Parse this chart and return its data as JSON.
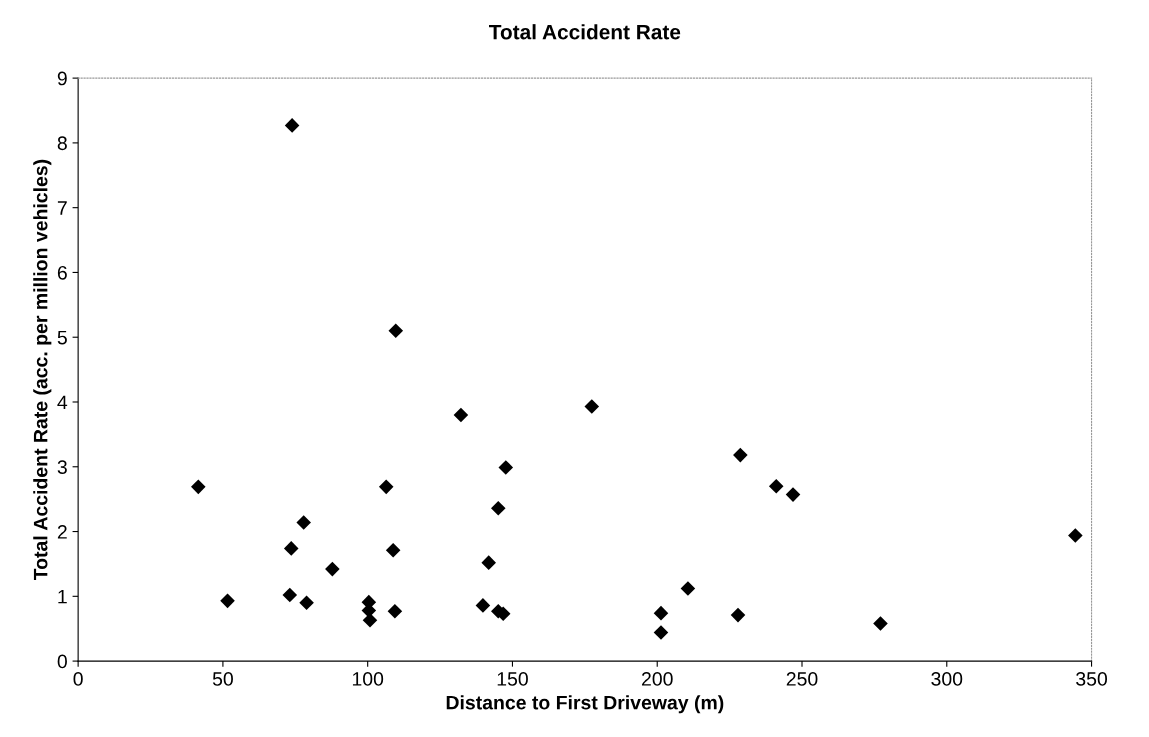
{
  "chart_data": {
    "type": "scatter",
    "title": "Total Accident Rate",
    "xlabel": "Distance to First Driveway (m)",
    "ylabel": "Total Accident Rate (acc. per million vehicles)",
    "x": [
      73.9,
      109.7,
      132.2,
      41.5,
      106.4,
      147.7,
      77.9,
      145.1,
      73.6,
      108.8,
      87.8,
      141.8,
      51.6,
      73.1,
      78.9,
      100.4,
      100.4,
      100.8,
      109.4,
      139.8,
      145.1,
      146.8,
      177.4,
      228.7,
      241.1,
      246.9,
      344.4,
      210.6,
      201.3,
      201.3,
      227.9,
      277.1
    ],
    "values": [
      8.27,
      5.1,
      3.8,
      2.69,
      2.69,
      2.99,
      2.14,
      2.36,
      1.74,
      1.71,
      1.42,
      1.52,
      0.93,
      1.02,
      0.9,
      0.91,
      0.78,
      0.63,
      0.77,
      0.86,
      0.77,
      0.73,
      3.93,
      3.18,
      2.7,
      2.57,
      1.94,
      1.12,
      0.74,
      0.44,
      0.71,
      0.58
    ],
    "color": "#000000",
    "marker": "diamond",
    "xlim": [
      0,
      350
    ],
    "ylim": [
      0,
      9
    ],
    "xticks": [
      0,
      50,
      100,
      150,
      200,
      250,
      300,
      350
    ],
    "yticks": [
      0,
      1,
      2,
      3,
      4,
      5,
      6,
      7,
      8,
      9
    ],
    "grid": false,
    "legend": false
  }
}
